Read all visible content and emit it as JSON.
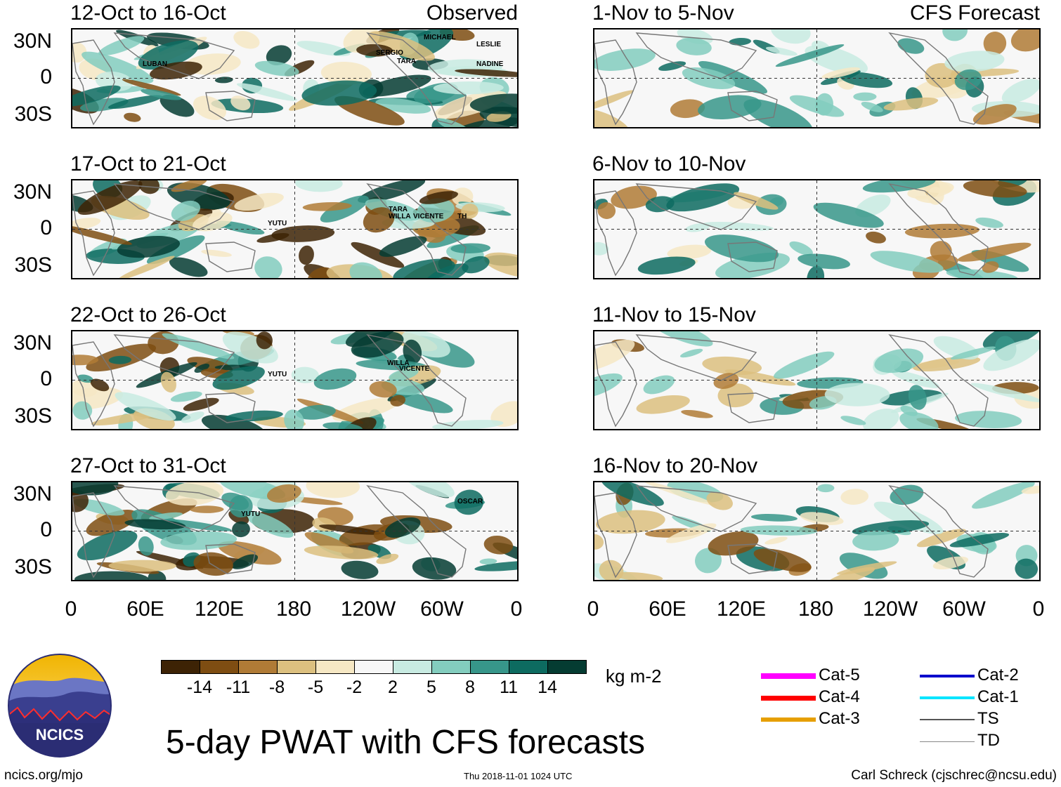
{
  "title": "5-day PWAT with CFS forecasts",
  "units": "kg m-2",
  "columns": {
    "observed": "Observed",
    "forecast": "CFS Forecast"
  },
  "lat_labels": [
    "30N",
    "0",
    "30S"
  ],
  "lon_labels": [
    "0",
    "60E",
    "120E",
    "180",
    "120W",
    "60W",
    "0"
  ],
  "panels": [
    {
      "period": "12-Oct to 16-Oct",
      "storms": [
        "LUBAN",
        "MICHAEL",
        "LESLIE",
        "SERGIO",
        "TARA",
        "NADINE"
      ]
    },
    {
      "period": "17-Oct to 21-Oct",
      "storms": [
        "YUTU",
        "TARA",
        "WILLA",
        "VICENTE",
        "TH"
      ]
    },
    {
      "period": "22-Oct to 26-Oct",
      "storms": [
        "YUTU",
        "WILLA",
        "VICENTE"
      ]
    },
    {
      "period": "27-Oct to 31-Oct",
      "storms": [
        "YUTU",
        "OSCAR"
      ]
    },
    {
      "period": "1-Nov to 5-Nov",
      "storms": []
    },
    {
      "period": "6-Nov to 10-Nov",
      "storms": []
    },
    {
      "period": "11-Nov to 15-Nov",
      "storms": []
    },
    {
      "period": "16-Nov to 20-Nov",
      "storms": []
    }
  ],
  "colorbar": {
    "colors": [
      "#3d2305",
      "#7e4d12",
      "#b07b36",
      "#dcc07f",
      "#f6e8c4",
      "#f7f7f7",
      "#c8ebe2",
      "#83cdbe",
      "#37968a",
      "#0d6b60",
      "#053c32"
    ],
    "ticks": [
      "-14",
      "-11",
      "-8",
      "-5",
      "-2",
      "2",
      "5",
      "8",
      "11",
      "14"
    ]
  },
  "legend": [
    {
      "label": "Cat-5",
      "color": "#ff00ff"
    },
    {
      "label": "Cat-4",
      "color": "#ff0000"
    },
    {
      "label": "Cat-3",
      "color": "#e69f00"
    },
    {
      "label": "Cat-2",
      "color": "#0000cc"
    },
    {
      "label": "Cat-1",
      "color": "#00e5ff"
    },
    {
      "label": "TS",
      "color": "#555555"
    },
    {
      "label": "TD",
      "color": "#888888"
    }
  ],
  "logo_text": "NCICS",
  "footer": {
    "url": "ncics.org/mjo",
    "timestamp": "Thu 2018-11-01 1024 UTC",
    "credit": "Carl Schreck (cjschrec@ncsu.edu)"
  }
}
